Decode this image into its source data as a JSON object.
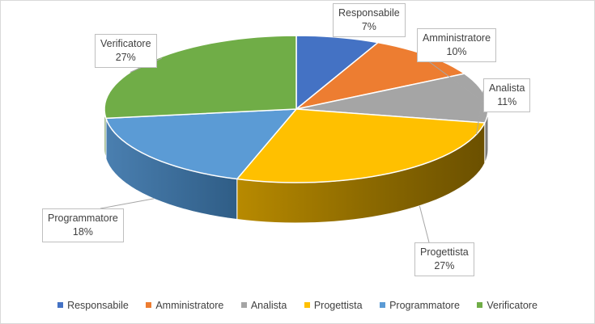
{
  "chart_data": {
    "type": "pie",
    "style": "3d",
    "categories": [
      "Responsabile",
      "Amministratore",
      "Analista",
      "Progettista",
      "Programmatore",
      "Verificatore"
    ],
    "values": [
      7,
      10,
      11,
      27,
      18,
      27
    ],
    "value_labels": [
      "7%",
      "10%",
      "11%",
      "27%",
      "18%",
      "27%"
    ],
    "colors": [
      "#4472c4",
      "#ed7d31",
      "#a5a5a5",
      "#ffc000",
      "#5b9bd5",
      "#70ad47"
    ],
    "legend": "bottom"
  }
}
